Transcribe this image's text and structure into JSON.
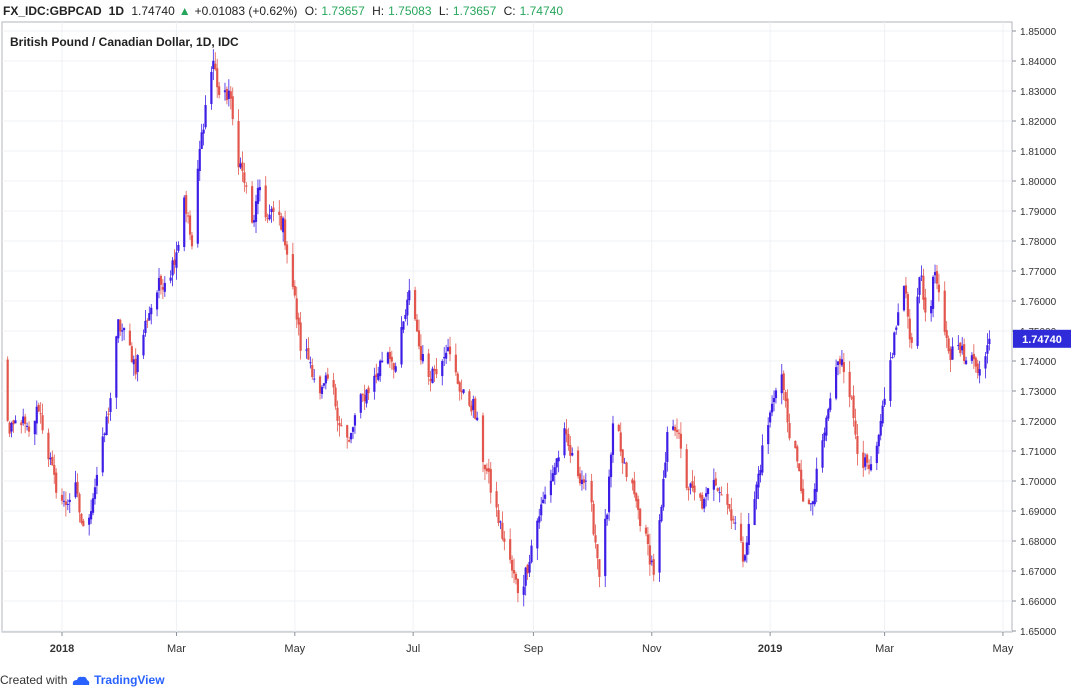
{
  "header": {
    "symbol": "FX_IDC:GBPCAD",
    "interval": "1D",
    "last": "1.74740",
    "change_arrow": "▲",
    "change": "+0.01083 (+0.62%)",
    "open_label": "O:",
    "open": "1.73657",
    "high_label": "H:",
    "high": "1.75083",
    "low_label": "L:",
    "low": "1.73657",
    "close_label": "C:",
    "close": "1.74740"
  },
  "footer": {
    "created_with": "Created with",
    "brand": "TradingView",
    "logo_icon": "tradingview-cloud-icon"
  },
  "chart_data": {
    "type": "candlestick",
    "title": "British Pound / Canadian Dollar, 1D, IDC",
    "ylim": [
      1.65,
      1.855
    ],
    "y_ticks": [
      "1.65000",
      "1.66000",
      "1.67000",
      "1.68000",
      "1.69000",
      "1.70000",
      "1.71000",
      "1.72000",
      "1.73000",
      "1.74000",
      "1.75000",
      "1.76000",
      "1.77000",
      "1.78000",
      "1.79000",
      "1.80000",
      "1.81000",
      "1.82000",
      "1.83000",
      "1.84000",
      "1.85000"
    ],
    "x_ticks": [
      "2018",
      "Mar",
      "May",
      "Jul",
      "Sep",
      "Nov",
      "2019",
      "Mar",
      "May"
    ],
    "last_price_label": "1.74740",
    "colors": {
      "up": "#3c1ee6",
      "down": "#e3564d",
      "last_price_bg": "#2f2bd9",
      "grid": "#e9eef3"
    },
    "close_path": [
      [
        "2017-12-01",
        1.74
      ],
      [
        "2017-12-05",
        1.715
      ],
      [
        "2017-12-10",
        1.722
      ],
      [
        "2017-12-15",
        1.715
      ],
      [
        "2017-12-20",
        1.725
      ],
      [
        "2017-12-24",
        1.712
      ],
      [
        "2017-12-28",
        1.7
      ],
      [
        "2018-01-02",
        1.692
      ],
      [
        "2018-01-08",
        1.697
      ],
      [
        "2018-01-12",
        1.683
      ],
      [
        "2018-01-16",
        1.692
      ],
      [
        "2018-01-22",
        1.712
      ],
      [
        "2018-01-26",
        1.728
      ],
      [
        "2018-01-30",
        1.752
      ],
      [
        "2018-02-03",
        1.748
      ],
      [
        "2018-02-08",
        1.738
      ],
      [
        "2018-02-14",
        1.755
      ],
      [
        "2018-02-20",
        1.765
      ],
      [
        "2018-02-26",
        1.77
      ],
      [
        "2018-03-02",
        1.78
      ],
      [
        "2018-03-05",
        1.795
      ],
      [
        "2018-03-09",
        1.778
      ],
      [
        "2018-03-13",
        1.81
      ],
      [
        "2018-03-17",
        1.83
      ],
      [
        "2018-03-20",
        1.84
      ],
      [
        "2018-03-24",
        1.825
      ],
      [
        "2018-03-28",
        1.83
      ],
      [
        "2018-04-01",
        1.81
      ],
      [
        "2018-04-05",
        1.8
      ],
      [
        "2018-04-09",
        1.785
      ],
      [
        "2018-04-13",
        1.798
      ],
      [
        "2018-04-17",
        1.787
      ],
      [
        "2018-04-21",
        1.79
      ],
      [
        "2018-04-25",
        1.785
      ],
      [
        "2018-04-30",
        1.765
      ],
      [
        "2018-05-04",
        1.745
      ],
      [
        "2018-05-09",
        1.74
      ],
      [
        "2018-05-14",
        1.728
      ],
      [
        "2018-05-19",
        1.735
      ],
      [
        "2018-05-24",
        1.72
      ],
      [
        "2018-05-29",
        1.712
      ],
      [
        "2018-06-02",
        1.724
      ],
      [
        "2018-06-07",
        1.73
      ],
      [
        "2018-06-12",
        1.735
      ],
      [
        "2018-06-17",
        1.745
      ],
      [
        "2018-06-22",
        1.738
      ],
      [
        "2018-06-26",
        1.752
      ],
      [
        "2018-06-30",
        1.765
      ],
      [
        "2018-07-04",
        1.745
      ],
      [
        "2018-07-08",
        1.735
      ],
      [
        "2018-07-13",
        1.738
      ],
      [
        "2018-07-18",
        1.745
      ],
      [
        "2018-07-23",
        1.735
      ],
      [
        "2018-07-27",
        1.728
      ],
      [
        "2018-08-01",
        1.725
      ],
      [
        "2018-08-06",
        1.708
      ],
      [
        "2018-08-11",
        1.695
      ],
      [
        "2018-08-16",
        1.682
      ],
      [
        "2018-08-21",
        1.67
      ],
      [
        "2018-08-25",
        1.662
      ],
      [
        "2018-08-29",
        1.672
      ],
      [
        "2018-09-02",
        1.685
      ],
      [
        "2018-09-07",
        1.695
      ],
      [
        "2018-09-12",
        1.705
      ],
      [
        "2018-09-17",
        1.715
      ],
      [
        "2018-09-22",
        1.705
      ],
      [
        "2018-09-27",
        1.7
      ],
      [
        "2018-10-01",
        1.69
      ],
      [
        "2018-10-05",
        1.67
      ],
      [
        "2018-10-09",
        1.69
      ],
      [
        "2018-10-13",
        1.725
      ],
      [
        "2018-10-17",
        1.705
      ],
      [
        "2018-10-21",
        1.7
      ],
      [
        "2018-10-25",
        1.69
      ],
      [
        "2018-10-29",
        1.68
      ],
      [
        "2018-11-02",
        1.67
      ],
      [
        "2018-11-06",
        1.69
      ],
      [
        "2018-11-10",
        1.722
      ],
      [
        "2018-11-14",
        1.718
      ],
      [
        "2018-11-18",
        1.7
      ],
      [
        "2018-11-23",
        1.695
      ],
      [
        "2018-11-28",
        1.692
      ],
      [
        "2018-12-03",
        1.702
      ],
      [
        "2018-12-08",
        1.695
      ],
      [
        "2018-12-13",
        1.688
      ],
      [
        "2018-12-18",
        1.675
      ],
      [
        "2018-12-23",
        1.69
      ],
      [
        "2018-12-28",
        1.71
      ],
      [
        "2019-01-02",
        1.725
      ],
      [
        "2019-01-06",
        1.74
      ],
      [
        "2019-01-10",
        1.72
      ],
      [
        "2019-01-14",
        1.708
      ],
      [
        "2019-01-18",
        1.695
      ],
      [
        "2019-01-22",
        1.69
      ],
      [
        "2019-01-26",
        1.705
      ],
      [
        "2019-01-30",
        1.72
      ],
      [
        "2019-02-03",
        1.735
      ],
      [
        "2019-02-07",
        1.742
      ],
      [
        "2019-02-11",
        1.73
      ],
      [
        "2019-02-15",
        1.712
      ],
      [
        "2019-02-19",
        1.705
      ],
      [
        "2019-02-23",
        1.702
      ],
      [
        "2019-02-27",
        1.718
      ],
      [
        "2019-03-03",
        1.735
      ],
      [
        "2019-03-07",
        1.752
      ],
      [
        "2019-03-11",
        1.765
      ],
      [
        "2019-03-15",
        1.745
      ],
      [
        "2019-03-19",
        1.77
      ],
      [
        "2019-03-23",
        1.752
      ],
      [
        "2019-03-27",
        1.77
      ],
      [
        "2019-03-31",
        1.75
      ],
      [
        "2019-04-04",
        1.742
      ],
      [
        "2019-04-08",
        1.748
      ],
      [
        "2019-04-12",
        1.738
      ],
      [
        "2019-04-16",
        1.742
      ],
      [
        "2019-04-20",
        1.735
      ],
      [
        "2019-04-24",
        1.7474
      ]
    ]
  }
}
